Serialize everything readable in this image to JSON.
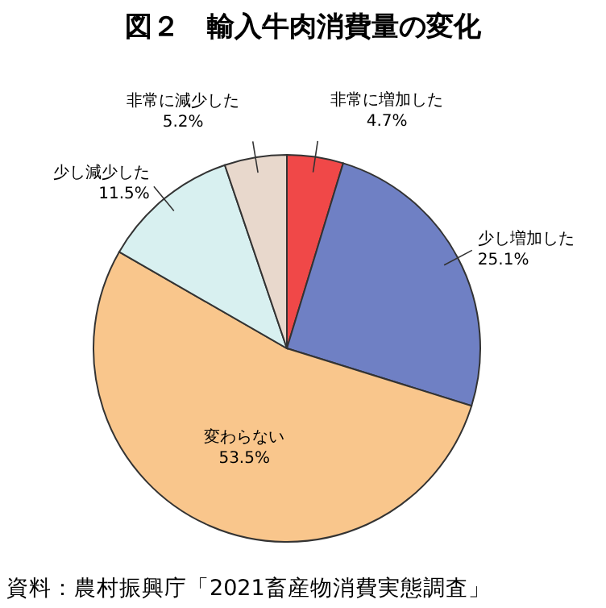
{
  "chart_data": {
    "type": "pie",
    "title": "図２　輸入牛肉消費量の変化",
    "categories": [
      "非常に増加した",
      "少し増加した",
      "変わらない",
      "少し減少した",
      "非常に減少した"
    ],
    "values": [
      4.7,
      25.1,
      53.5,
      11.5,
      5.2
    ],
    "value_labels": [
      "4.7%",
      "25.1%",
      "53.5%",
      "11.5%",
      "5.2%"
    ],
    "colors": [
      "#f04848",
      "#6f80c4",
      "#f9c68c",
      "#d8f0f0",
      "#e8d8cc"
    ],
    "annotations": [
      "資料：農村振興庁「2021畜産物消費実態調査」"
    ]
  }
}
